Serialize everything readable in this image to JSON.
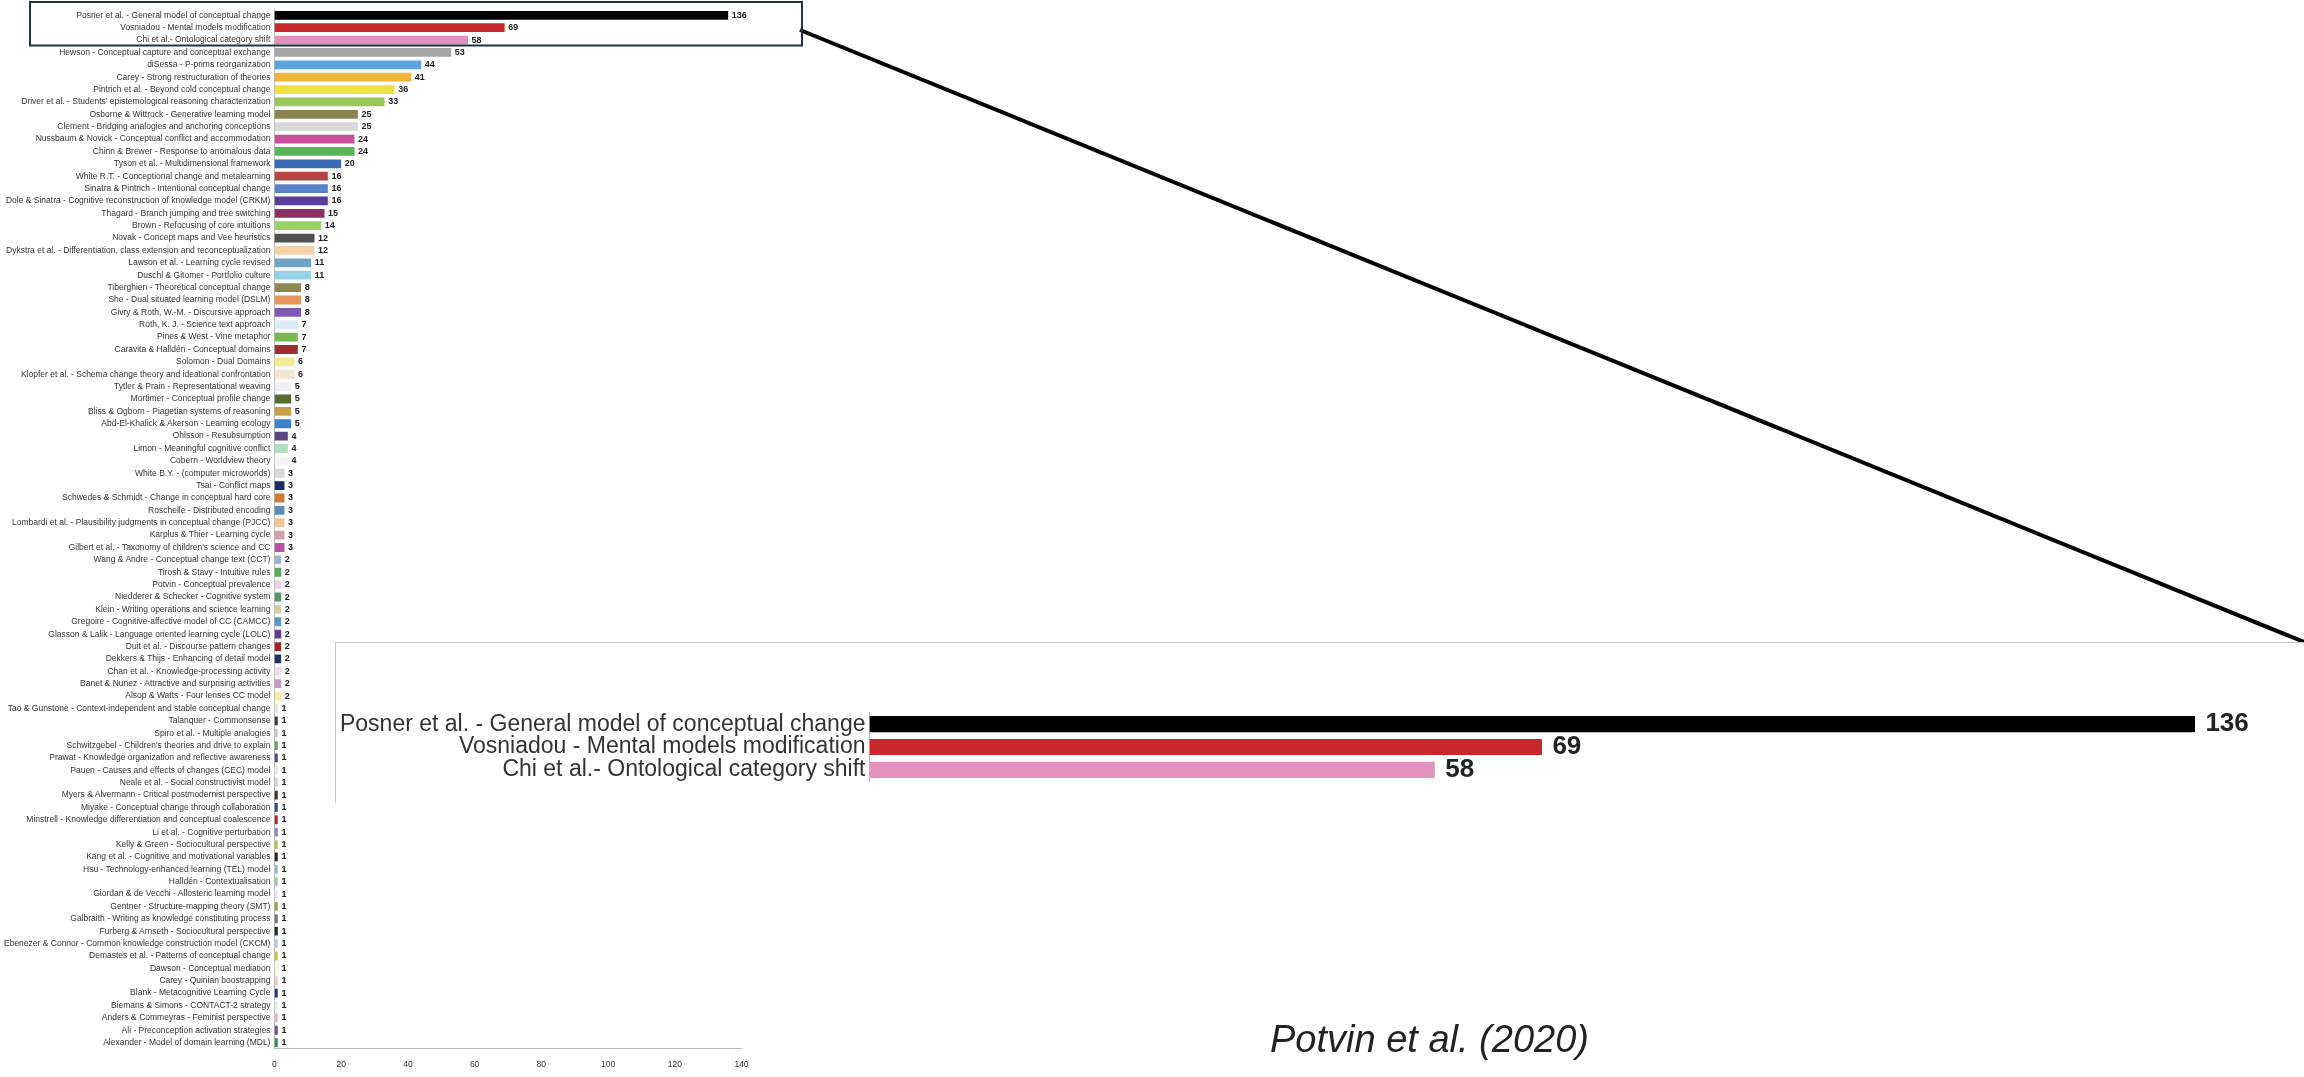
{
  "chart_data": [
    {
      "type": "bar",
      "orientation": "horizontal",
      "data_labels": true,
      "grid": false,
      "xlim": [
        0,
        140
      ],
      "xticks": [
        0,
        20,
        40,
        60,
        80,
        100,
        120,
        140
      ],
      "annotations": [
        "Potvin et al. (2020)"
      ],
      "categories": [
        "Posner et al. - General model of conceptual change",
        "Vosniadou - Mental models modification",
        "Chi et al.- Ontological category shift",
        "Hewson - Conceptual capture and conceptual exchange",
        "diSessa - P-prims reorganization",
        "Carey - Strong restructuration of theories",
        "Pintrich et al. - Beyond cold conceptual change",
        "Driver et al. - Students' epistemological reasoning characterization",
        "Osborne & Wittrock - Generative learning model",
        "Clement - Bridging analogies and anchoring conceptions",
        "Nussbaum & Novick - Conceptual conflict and accommodation",
        "Chinn & Brewer - Response to anomalous data",
        "Tyson et al. - Multidimensional framework",
        "White R.T. - Conceptional change and metalearning",
        "Sinatra & Pintrich - Intentional conceptual change",
        "Dole & Sinatra - Cognitive reconstruction of knowledge model (CRKM)",
        "Thagard - Branch jumping and tree switching",
        "Brown - Refocusing of core intuitions",
        "Novak - Concept maps and Vee heuristics",
        "Dykstra et al. - Differentiation, class extension and reconceptualization",
        "Lawson et al. - Learning cycle revised",
        "Duschl & Gitomer - Portfolio culture",
        "Tiberghien - Theoretical conceptual change",
        "She - Dual situated learning model (DSLM)",
        "Givry & Roth, W.-M. - Discursive approach",
        "Roth, K. J. - Science text approach",
        "Pines & West - Vine metaphor",
        "Caravita & Halldén - Conceptual domains",
        "Solomon - Dual Domains",
        "Klopfer et al. - Schema change theory and ideational confrontation",
        "Tytler & Prain - Representational weaving",
        "Mortimer - Conceptual profile change",
        "Bliss & Ogborn - Piagetian systems of reasoning",
        "Abd-El-Khalick & Akerson - Learning ecology",
        "Ohlsson - Resubsumption",
        "Limon - Meaningful cognitive conflict",
        "Cobern - Worldview theory",
        "White B.Y. - (computer microworlds)",
        "Tsai - Conflict maps",
        "Schwedes & Schmidt - Change in conceptual hard core",
        "Roschelle - Distributed encoding",
        "Lombardi et al. - Plausibility judgments in conceptual change (PJCC)",
        "Karplus & Thier - Learning cycle",
        "Gilbert et al. - Taxonomy of children's science and CC",
        "Wang & Andre - Conceptual change text (CCT)",
        "Tirosh & Stavy - Intuitive rules",
        "Potvin - Conceptual prevalence",
        "Niedderer & Schecker - Cognitive system",
        "Klein - Writing operations and science learning",
        "Gregoire - Cognitive-affective model of CC (CAMCC)",
        "Glasson & Lalik - Language oriented learning cycle (LOLC)",
        "Duit et al. - Discourse pattern changes",
        "Dekkers & Thijs - Enhancing of detail model",
        "Chan et al. - Knowledge-processing activity",
        "Banet & Nunez - Attractive and surprising activities",
        "Alsop & Watts - Four lenses CC model",
        "Tao & Gunstone - Context-independent and stable conceptual change",
        "Talanquer - Commonsense",
        "Spiro et al. - Multiple analogies",
        "Schwitzgebel - Children's theories and drive to explain",
        "Prawat - Knowledge organization and reflective awareness",
        "Pauen - Causes and effects of changes (CEC) model",
        "Neale et al. - Social constructivist model",
        "Myers & Alvermann - Critical postmodernist perspective",
        "Miyake - Conceptual change through collaboration",
        "Minstrell - Knowledge differentiation and conceptual coalescence",
        "Li et al. - Cognitive perturbation",
        "Kelly & Green - Sociocultural perspective",
        "Kang et al. - Cognitive and motivational variables",
        "Hsu - Technology-enhanced learning (TEL) model",
        "Halldén - Contextualisation",
        "Giordan & de Vecchi - Allosteric learning model",
        "Gentner - Structure-mapping theory (SMT)",
        "Galbraith - Writing as knowledge constituting process",
        "Furberg & Arnseth - Sociocultural perspective",
        "Ebenezer & Connor - Common knowledge construction model (CKCM)",
        "Demastes et al. - Patterns of conceptual change",
        "Dawson - Conceptual mediation",
        "Carey - Quinian boostrapping",
        "Blank - Metacognitive Learning Cycle",
        "Biemans & Simons - CONTACT-2 strategy",
        "Anders & Commeyras - Feminist perspective",
        "Ali - Preconception activation strategies",
        "Alexander - Model of domain learning (MDL)"
      ],
      "values": [
        136,
        69,
        58,
        53,
        44,
        41,
        36,
        33,
        25,
        25,
        24,
        24,
        20,
        16,
        16,
        16,
        15,
        14,
        12,
        12,
        11,
        11,
        8,
        8,
        8,
        7,
        7,
        7,
        6,
        6,
        5,
        5,
        5,
        5,
        4,
        4,
        4,
        3,
        3,
        3,
        3,
        3,
        3,
        3,
        2,
        2,
        2,
        2,
        2,
        2,
        2,
        2,
        2,
        2,
        2,
        2,
        1,
        1,
        1,
        1,
        1,
        1,
        1,
        1,
        1,
        1,
        1,
        1,
        1,
        1,
        1,
        1,
        1,
        1,
        1,
        1,
        1,
        1,
        1,
        1,
        1,
        1,
        1,
        1
      ],
      "colors": [
        "#000000",
        "#c8282d",
        "#e391bd",
        "#a5a5a5",
        "#5aa5e0",
        "#f0b43c",
        "#f0e141",
        "#9bc85a",
        "#8c8250",
        "#d9d9d9",
        "#c8509b",
        "#5ab45a",
        "#3c69b4",
        "#b44646",
        "#5a82c8",
        "#5a3c9b",
        "#8c2d64",
        "#9bd264",
        "#505050",
        "#f5d2aa",
        "#6ea5c8",
        "#96d2e6",
        "#8c8750",
        "#e6965a",
        "#7d5ab4",
        "#dcebf5",
        "#78b950",
        "#a02d2d",
        "#f5eb96",
        "#f5e6d2",
        "#eef0f5",
        "#556b2f",
        "#c8a046",
        "#3c82c8",
        "#5a4682",
        "#b4dcbe",
        "#f4f4f4",
        "#d9d9d9",
        "#1e2864",
        "#d2783c",
        "#5a8cb4",
        "#f0c896",
        "#d2a0aa",
        "#be50aa",
        "#a0b4d2",
        "#5aaa5a",
        "#f0d2eb",
        "#5a966e",
        "#d2d2a0",
        "#5a96c8",
        "#5a3c96",
        "#a02828",
        "#1e3264",
        "#f0dceb",
        "#c896c8",
        "#f5f0a0",
        "#e6ebc8",
        "#3c3c3c",
        "#c8c8c8",
        "#5aaa5a",
        "#5a4696",
        "#f0e6f0",
        "#c8d2e6",
        "#4b321e",
        "#32469b",
        "#b42828",
        "#a078c8",
        "#b4c850",
        "#3c1e28",
        "#8cbee6",
        "#a0d2a0",
        "#e6ebf5",
        "#a0a050",
        "#787878",
        "#1e2d1e",
        "#a0d2f0",
        "#c8c83c",
        "#f5f5dc",
        "#f0c8c8",
        "#283c8c",
        "#e6f0dc",
        "#f0b4b4",
        "#7846a0",
        "#3c8c50"
      ]
    },
    {
      "type": "bar",
      "orientation": "horizontal",
      "data_labels": true,
      "grid": false,
      "tick_labels": "y",
      "categories": [
        "Posner et al. - General model of conceptual change",
        "Vosniadou - Mental models modification",
        "Chi et al.- Ontological category shift"
      ],
      "values": [
        136,
        69,
        58
      ],
      "colors": [
        "#000000",
        "#c8282d",
        "#e391bd"
      ]
    }
  ]
}
